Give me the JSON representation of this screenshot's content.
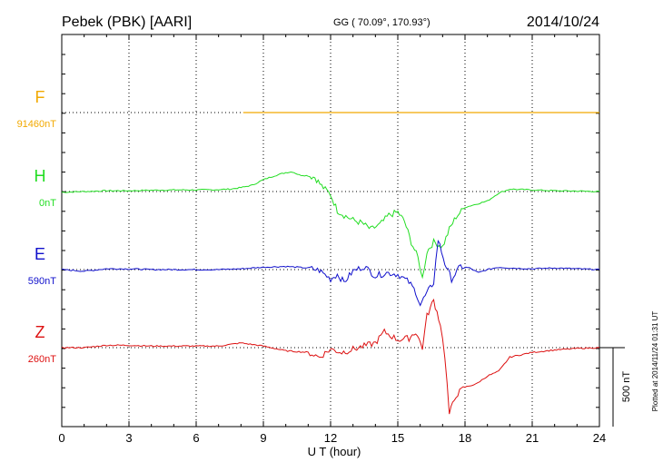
{
  "header": {
    "station": "Pebek (PBK)  [AARI]",
    "coords": "GG ( 70.09°, 170.93°)",
    "date": "2014/10/24"
  },
  "footer": {
    "plotted": "Plotted at 2014/11/24 01:31  UT"
  },
  "colors": {
    "F": "#f2a900",
    "H": "#22dd22",
    "E": "#1010cc",
    "Z": "#dd1111",
    "axis": "#000000"
  },
  "chart_data": {
    "type": "line",
    "title": "",
    "xlabel": "U T (hour)",
    "xlim": [
      0,
      24
    ],
    "xticks": [
      0,
      3,
      6,
      9,
      12,
      15,
      18,
      21,
      24
    ],
    "xtick_labels": [
      "0",
      "3",
      "6",
      "9",
      "12",
      "15",
      "18",
      "21",
      "24"
    ],
    "scale_bar_label": "500 nT",
    "scale_bar_nT": 500,
    "series": [
      {
        "name": "F",
        "baseline_label": "91460nT",
        "points": [
          [
            8.1,
            0
          ],
          [
            24,
            0
          ]
        ]
      },
      {
        "name": "H",
        "baseline_label": "0nT",
        "points": [
          [
            0,
            -5
          ],
          [
            1,
            0
          ],
          [
            2,
            5
          ],
          [
            3,
            5
          ],
          [
            4,
            8
          ],
          [
            5,
            10
          ],
          [
            6,
            10
          ],
          [
            7,
            12
          ],
          [
            7.5,
            15
          ],
          [
            8,
            25
          ],
          [
            8.5,
            40
          ],
          [
            9,
            75
          ],
          [
            9.5,
            100
          ],
          [
            10,
            120
          ],
          [
            10.3,
            125
          ],
          [
            10.6,
            105
          ],
          [
            11,
            100
          ],
          [
            11.3,
            90
          ],
          [
            11.6,
            35
          ],
          [
            12,
            -20
          ],
          [
            12.3,
            -120
          ],
          [
            12.6,
            -150
          ],
          [
            13,
            -180
          ],
          [
            13.4,
            -200
          ],
          [
            13.8,
            -240
          ],
          [
            14.2,
            -210
          ],
          [
            14.6,
            -150
          ],
          [
            15,
            -130
          ],
          [
            15.3,
            -190
          ],
          [
            15.6,
            -320
          ],
          [
            15.9,
            -420
          ],
          [
            16.1,
            -550
          ],
          [
            16.3,
            -380
          ],
          [
            16.6,
            -320
          ],
          [
            17,
            -350
          ],
          [
            17.3,
            -240
          ],
          [
            17.6,
            -160
          ],
          [
            18,
            -100
          ],
          [
            18.5,
            -80
          ],
          [
            19,
            -60
          ],
          [
            19.5,
            -10
          ],
          [
            20,
            15
          ],
          [
            21,
            10
          ],
          [
            22,
            5
          ],
          [
            23,
            3
          ],
          [
            24,
            0
          ]
        ]
      },
      {
        "name": "E",
        "baseline_label": "590nT",
        "points": [
          [
            0,
            0
          ],
          [
            1,
            -10
          ],
          [
            2,
            5
          ],
          [
            3,
            5
          ],
          [
            4,
            0
          ],
          [
            5,
            0
          ],
          [
            6,
            0
          ],
          [
            7,
            0
          ],
          [
            8,
            5
          ],
          [
            9,
            15
          ],
          [
            10,
            20
          ],
          [
            11,
            10
          ],
          [
            11.5,
            -5
          ],
          [
            12,
            -60
          ],
          [
            12.3,
            -30
          ],
          [
            12.6,
            -80
          ],
          [
            13,
            -10
          ],
          [
            13.5,
            20
          ],
          [
            14,
            -40
          ],
          [
            14.5,
            -20
          ],
          [
            15,
            -30
          ],
          [
            15.5,
            -80
          ],
          [
            15.8,
            -140
          ],
          [
            16,
            -220
          ],
          [
            16.3,
            -150
          ],
          [
            16.6,
            -80
          ],
          [
            16.8,
            190
          ],
          [
            17.1,
            40
          ],
          [
            17.4,
            -60
          ],
          [
            17.8,
            20
          ],
          [
            18.2,
            10
          ],
          [
            18.6,
            -20
          ],
          [
            19,
            0
          ],
          [
            19.5,
            15
          ],
          [
            20,
            10
          ],
          [
            21,
            5
          ],
          [
            22,
            10
          ],
          [
            23,
            5
          ],
          [
            24,
            0
          ]
        ]
      },
      {
        "name": "Z",
        "baseline_label": "260nT",
        "points": [
          [
            0,
            0
          ],
          [
            1,
            0
          ],
          [
            2,
            15
          ],
          [
            3,
            15
          ],
          [
            4,
            10
          ],
          [
            5,
            10
          ],
          [
            6,
            10
          ],
          [
            7,
            10
          ],
          [
            8,
            30
          ],
          [
            9,
            10
          ],
          [
            10,
            -20
          ],
          [
            11,
            -30
          ],
          [
            11.5,
            -60
          ],
          [
            12,
            -10
          ],
          [
            12.5,
            -30
          ],
          [
            13,
            -10
          ],
          [
            14,
            30
          ],
          [
            14.4,
            100
          ],
          [
            15,
            50
          ],
          [
            15.5,
            60
          ],
          [
            15.8,
            100
          ],
          [
            16.1,
            0
          ],
          [
            16.3,
            200
          ],
          [
            16.6,
            300
          ],
          [
            16.9,
            150
          ],
          [
            17.1,
            -50
          ],
          [
            17.3,
            -420
          ],
          [
            17.6,
            -300
          ],
          [
            18,
            -250
          ],
          [
            18.5,
            -230
          ],
          [
            19,
            -180
          ],
          [
            19.5,
            -150
          ],
          [
            20,
            -60
          ],
          [
            21,
            -30
          ],
          [
            22,
            -15
          ],
          [
            23,
            -5
          ],
          [
            24,
            0
          ]
        ]
      }
    ]
  }
}
